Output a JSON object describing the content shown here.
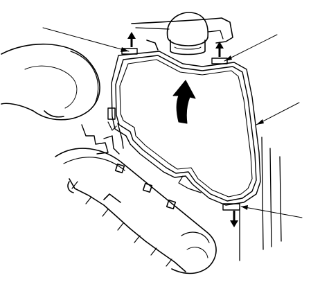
{
  "figure": {
    "background": "#ffffff",
    "ink": "#000000",
    "callout_count": 4,
    "part_arrows": [
      "up-arrow-icon",
      "up-arrow-icon",
      "down-arrow-icon"
    ],
    "motion_arrow": "curved-up-arrow-icon"
  }
}
